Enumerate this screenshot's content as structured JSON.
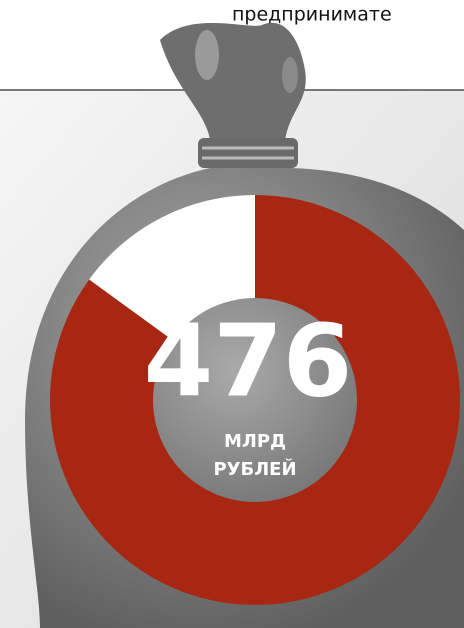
{
  "chart_data": {
    "type": "donut",
    "title": "предприниматe",
    "values": [
      85,
      15
    ],
    "colors": [
      "#a82712",
      "#ffffff"
    ],
    "center_text": "476",
    "center_sublabel": [
      "МЛРД",
      "РУБЛЕЙ"
    ]
  }
}
